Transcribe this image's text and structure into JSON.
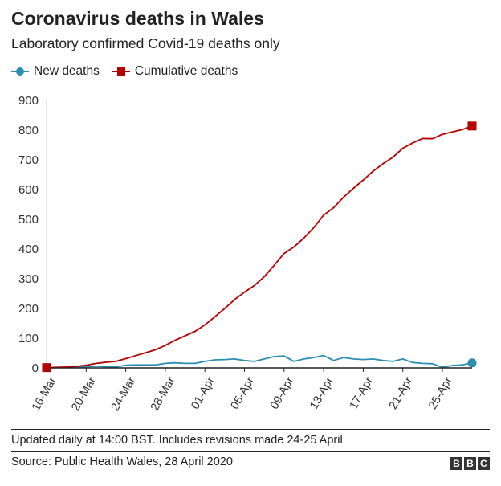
{
  "header": {
    "title": "Coronavirus deaths in Wales",
    "subtitle": "Laboratory confirmed Covid-19 deaths only"
  },
  "legend": {
    "items": [
      {
        "label": "New deaths",
        "color": "#2a8fb0",
        "marker": "circle"
      },
      {
        "label": "Cumulative deaths",
        "color": "#b80000",
        "marker": "square"
      }
    ]
  },
  "footer": {
    "note": "Updated daily at 14:00 BST. Includes revisions made 24-25 April",
    "source": "Source: Public Health Wales, 28 April 2020",
    "logo_letters": [
      "B",
      "B",
      "C"
    ]
  },
  "chart_data": {
    "type": "line",
    "x": [
      "16-Mar",
      "17-Mar",
      "18-Mar",
      "19-Mar",
      "20-Mar",
      "21-Mar",
      "22-Mar",
      "23-Mar",
      "24-Mar",
      "25-Mar",
      "26-Mar",
      "27-Mar",
      "28-Mar",
      "29-Mar",
      "30-Mar",
      "31-Mar",
      "01-Apr",
      "02-Apr",
      "03-Apr",
      "04-Apr",
      "05-Apr",
      "06-Apr",
      "07-Apr",
      "08-Apr",
      "09-Apr",
      "10-Apr",
      "11-Apr",
      "12-Apr",
      "13-Apr",
      "14-Apr",
      "15-Apr",
      "16-Apr",
      "17-Apr",
      "18-Apr",
      "19-Apr",
      "20-Apr",
      "21-Apr",
      "22-Apr",
      "23-Apr",
      "24-Apr",
      "25-Apr",
      "26-Apr",
      "27-Apr",
      "28-Apr"
    ],
    "x_tick_labels": [
      "16-Mar",
      "20-Mar",
      "24-Mar",
      "28-Mar",
      "01-Apr",
      "05-Apr",
      "09-Apr",
      "13-Apr",
      "17-Apr",
      "21-Apr",
      "25-Apr"
    ],
    "series": [
      {
        "name": "New deaths",
        "color": "#2a8fb0",
        "values": [
          0,
          1,
          1,
          2,
          4,
          6,
          4,
          3,
          9,
          10,
          10,
          10,
          15,
          17,
          15,
          15,
          22,
          27,
          28,
          30,
          25,
          22,
          30,
          38,
          40,
          22,
          30,
          35,
          42,
          25,
          35,
          30,
          28,
          30,
          25,
          22,
          30,
          18,
          15,
          14,
          2,
          8,
          10,
          17
        ]
      },
      {
        "name": "Cumulative deaths",
        "color": "#b80000",
        "values": [
          1,
          2,
          3,
          5,
          9,
          15,
          19,
          22,
          31,
          41,
          51,
          61,
          76,
          93,
          108,
          123,
          145,
          172,
          200,
          230,
          255,
          277,
          307,
          345,
          385,
          407,
          437,
          472,
          514,
          539,
          574,
          604,
          632,
          662,
          687,
          709,
          739,
          757,
          772,
          771,
          786,
          794,
          802,
          814
        ]
      }
    ],
    "ylim": [
      0,
      900
    ],
    "yticks": [
      0,
      100,
      200,
      300,
      400,
      500,
      600,
      700,
      800,
      900
    ],
    "grid": false,
    "legend_position": "top-left"
  }
}
